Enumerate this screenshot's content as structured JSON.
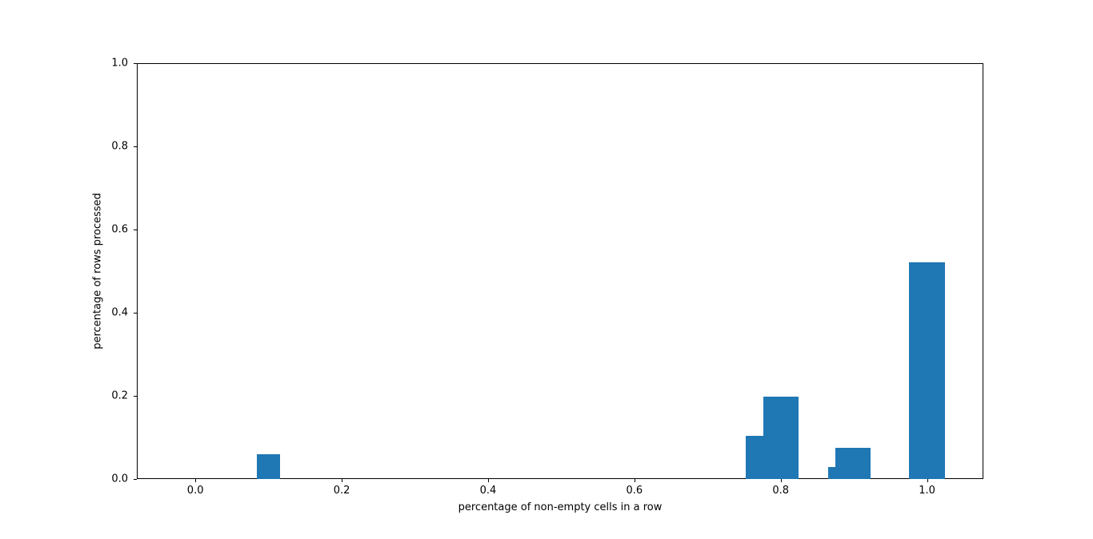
{
  "chart_data": {
    "type": "bar",
    "title": "",
    "xlabel": "percentage of non-empty cells in a row",
    "ylabel": "percentage of rows processed",
    "xlim": [
      -0.08,
      1.077
    ],
    "ylim": [
      0,
      1.0
    ],
    "x_ticks": [
      0.0,
      0.2,
      0.4,
      0.6,
      0.8,
      1.0
    ],
    "y_ticks": [
      0.0,
      0.2,
      0.4,
      0.6,
      0.8,
      1.0
    ],
    "grid": false,
    "legend_position": "none",
    "bar_color": "#1f77b4",
    "bars": [
      {
        "x0": 0.083,
        "x1": 0.115,
        "height": 0.061
      },
      {
        "x0": 0.751,
        "x1": 0.775,
        "height": 0.105
      },
      {
        "x0": 0.775,
        "x1": 0.823,
        "height": 0.2
      },
      {
        "x0": 0.864,
        "x1": 0.874,
        "height": 0.03
      },
      {
        "x0": 0.874,
        "x1": 0.922,
        "height": 0.077
      },
      {
        "x0": 0.974,
        "x1": 1.023,
        "height": 0.524
      }
    ]
  },
  "background_color": "#ffffff"
}
